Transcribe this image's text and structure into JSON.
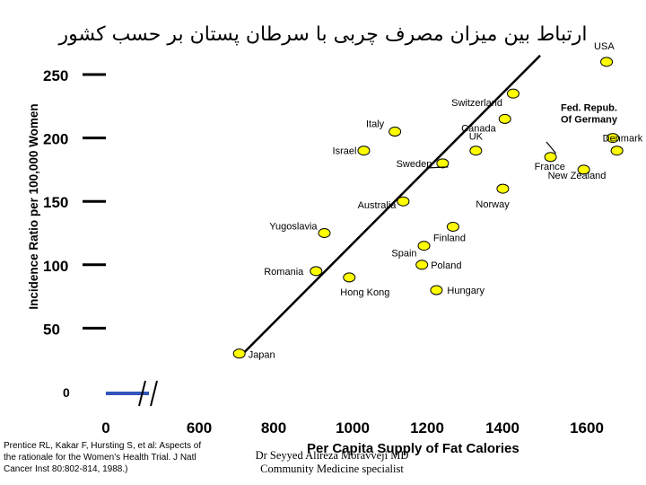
{
  "page": {
    "title": "ارتباط بین میزان مصرف چربی با سرطان پستان بر حسب کشور",
    "citation_lines": [
      "Prentice RL, Kakar F, Hursting S, et al: Aspects of",
      "the rationale for the Women's Health Trial. J Natl",
      "Cancer Inst 80:802-814, 1988.)"
    ],
    "credit_lines": [
      "Dr Seyyed Alireza Moravveji MD",
      "Community Medicine specialist"
    ]
  },
  "chart_data": {
    "type": "scatter",
    "title": "",
    "xlabel": "Per Capita Supply of Fat Calories",
    "ylabel": "Incidence Ratio per 100,000 Women",
    "x_ticks": [
      "0",
      "600",
      "800",
      "1000",
      "1200",
      "1400",
      "1600"
    ],
    "y_ticks": [
      "0",
      "50",
      "100",
      "150",
      "200",
      "250"
    ],
    "xlim": [
      600,
      1600
    ],
    "ylim": [
      0,
      250
    ],
    "x_axis_break": true,
    "grid": false,
    "point_color": "#ffff00",
    "line_color": "#000000",
    "points": [
      {
        "label": "USA",
        "x": 1585,
        "y": 260
      },
      {
        "label": "Switzerland",
        "x": 1360,
        "y": 235
      },
      {
        "label": "Canada",
        "x": 1340,
        "y": 215
      },
      {
        "label": "Fed. Repub. Of Germany",
        "x": 1600,
        "y": 200
      },
      {
        "label": "Denmark",
        "x": 1610,
        "y": 190
      },
      {
        "label": "Italy",
        "x": 1075,
        "y": 205
      },
      {
        "label": "Israel",
        "x": 1000,
        "y": 190
      },
      {
        "label": "UK",
        "x": 1270,
        "y": 190
      },
      {
        "label": "Sweden",
        "x": 1190,
        "y": 180
      },
      {
        "label": "France",
        "x": 1450,
        "y": 185
      },
      {
        "label": "New Zealand",
        "x": 1530,
        "y": 175
      },
      {
        "label": "Norway",
        "x": 1335,
        "y": 160
      },
      {
        "label": "Australia",
        "x": 1095,
        "y": 150
      },
      {
        "label": "Finland",
        "x": 1215,
        "y": 130
      },
      {
        "label": "Yugoslavia",
        "x": 905,
        "y": 125
      },
      {
        "label": "Spain",
        "x": 1145,
        "y": 115
      },
      {
        "label": "Poland",
        "x": 1140,
        "y": 100
      },
      {
        "label": "Romania",
        "x": 885,
        "y": 95
      },
      {
        "label": "Hong Kong",
        "x": 965,
        "y": 90
      },
      {
        "label": "Hungary",
        "x": 1175,
        "y": 80
      },
      {
        "label": "Japan",
        "x": 700,
        "y": 30
      }
    ],
    "trend_line": {
      "x": [
        700,
        1425
      ],
      "y": [
        27,
        265
      ]
    }
  }
}
